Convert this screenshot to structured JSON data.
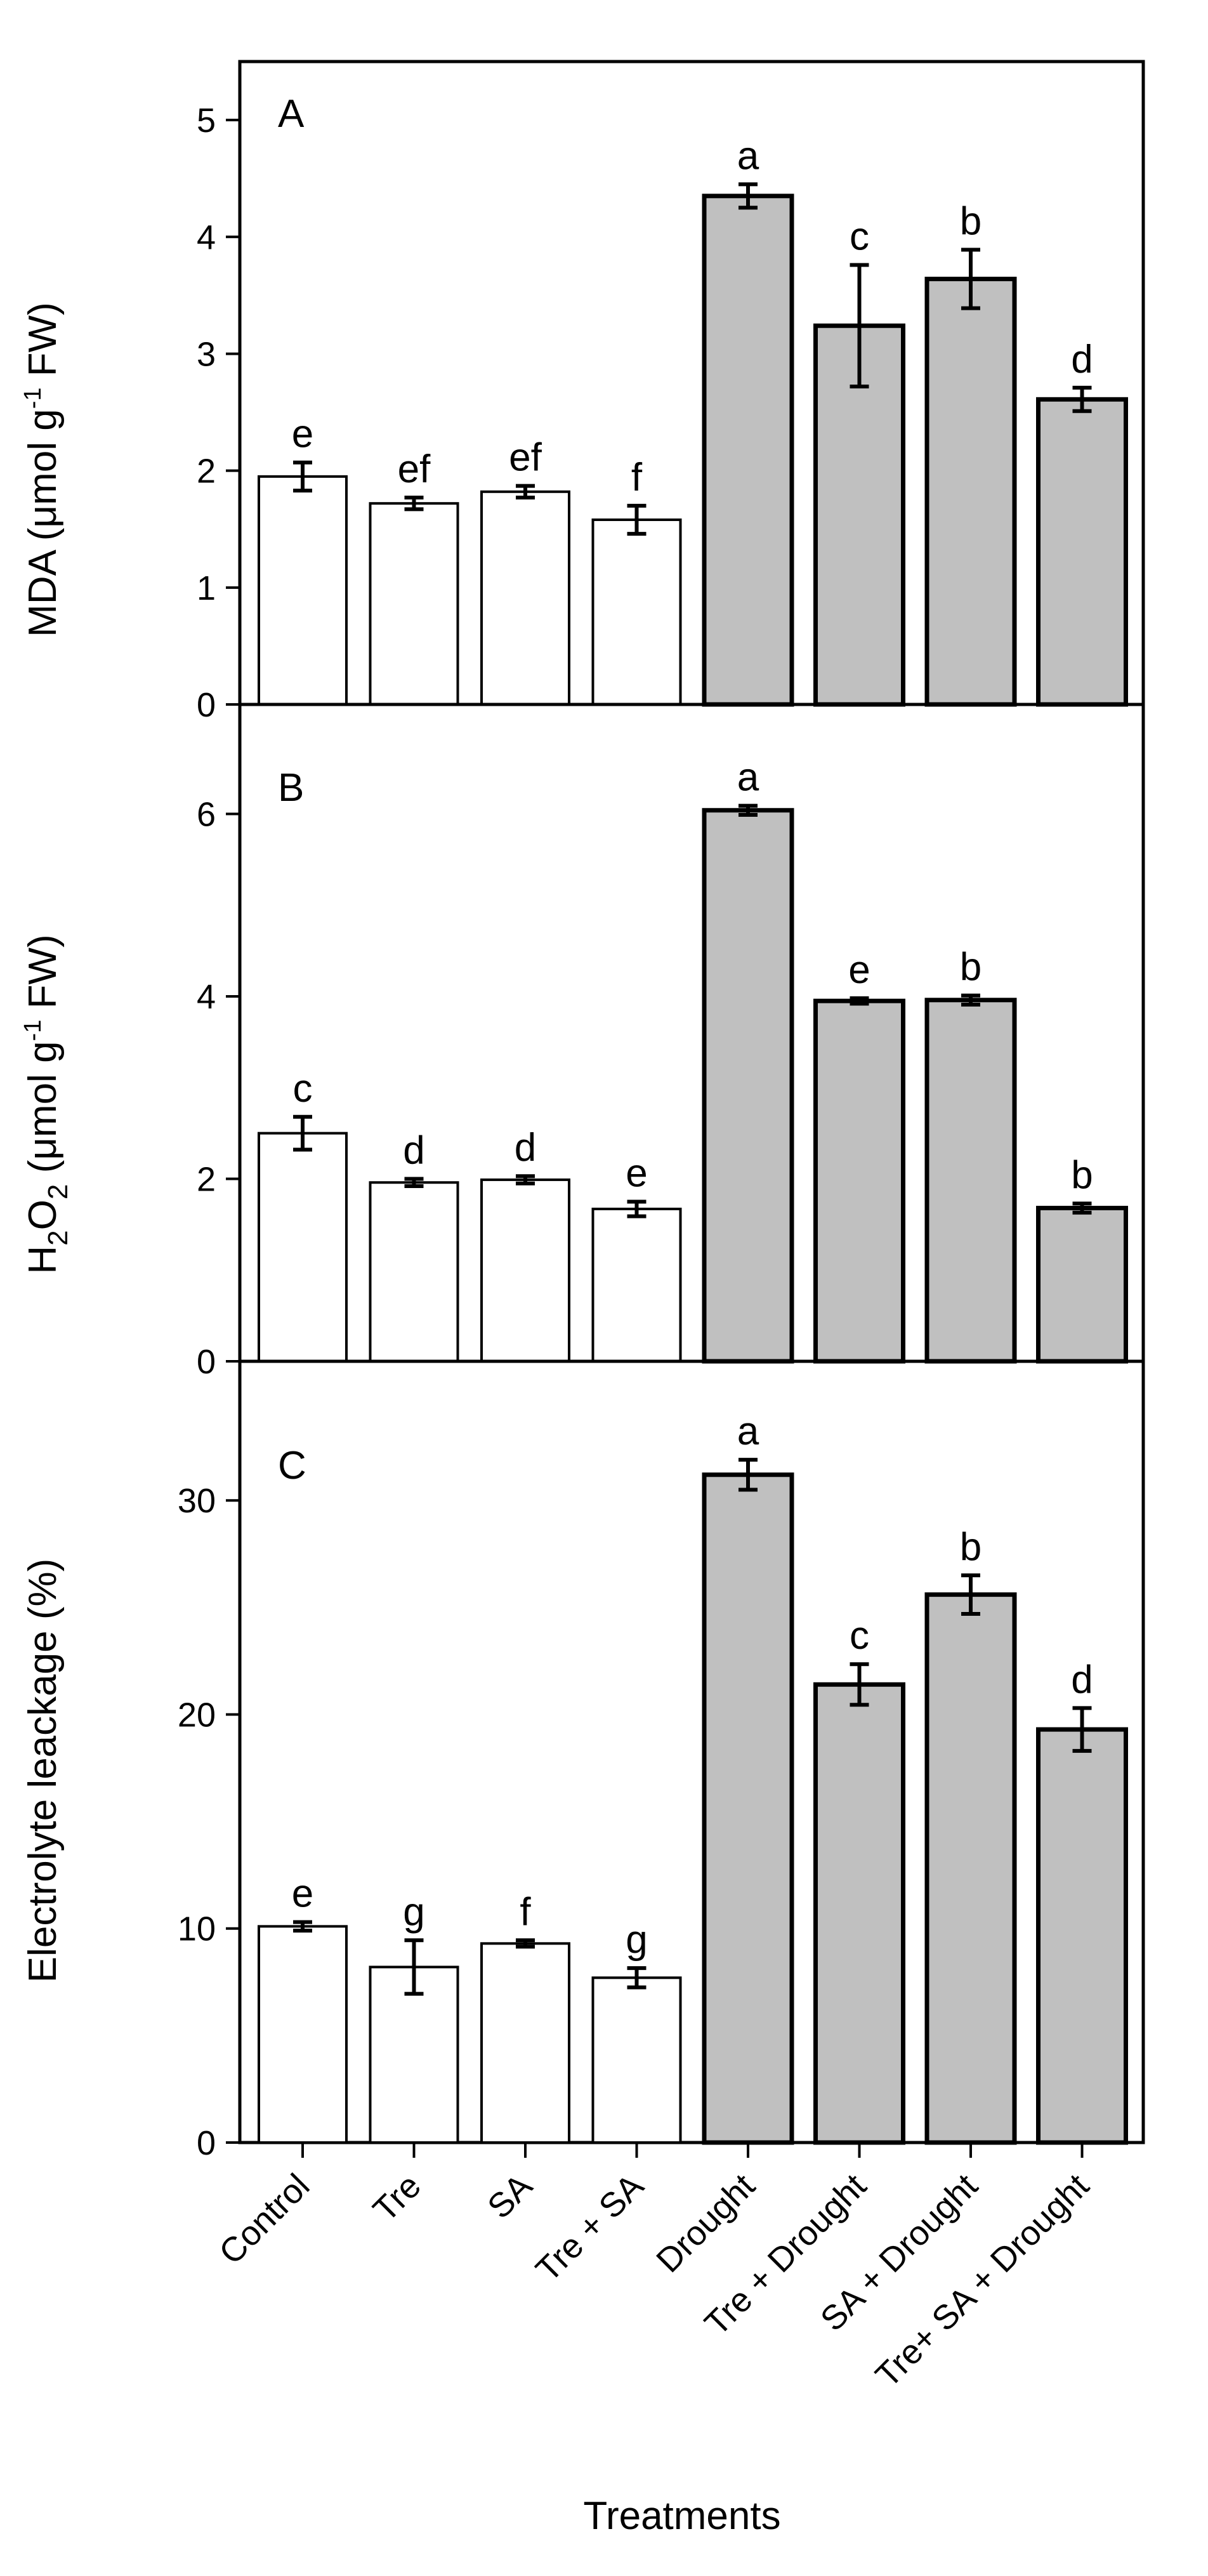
{
  "x_axis_title": "Treatments",
  "categories": [
    "Control",
    "Tre",
    "SA",
    "Tre + SA",
    "Drought",
    "Tre + Drought",
    "SA + Drought",
    "Tre+ SA + Drought"
  ],
  "bar_colors": [
    "#ffffff",
    "#ffffff",
    "#ffffff",
    "#ffffff",
    "#c0c0c0",
    "#c0c0c0",
    "#c0c0c0",
    "#c0c0c0"
  ],
  "chart_data": [
    {
      "type": "bar",
      "panel_letter": "A",
      "ylabel_main": "MDA (",
      "ylabel_mu": "μ",
      "ylabel_unit": "mol g",
      "ylabel_sup": "-1",
      "ylabel_end": " FW)",
      "ylim": [
        0,
        5.5
      ],
      "yticks": [
        0,
        1,
        2,
        3,
        4,
        5
      ],
      "values": [
        1.95,
        1.72,
        1.82,
        1.58,
        4.35,
        3.24,
        3.64,
        2.61
      ],
      "errors": [
        0.12,
        0.05,
        0.05,
        0.12,
        0.1,
        0.52,
        0.25,
        0.1
      ],
      "letters": [
        "e",
        "ef",
        "ef",
        "f",
        "a",
        "c",
        "b",
        "d"
      ]
    },
    {
      "type": "bar",
      "panel_letter": "B",
      "ylabel_h": "H",
      "ylabel_sub1": "2",
      "ylabel_o": "O",
      "ylabel_sub2": "2",
      "ylabel_main": " (",
      "ylabel_mu": "μ",
      "ylabel_unit": "mol g",
      "ylabel_sup": "-1",
      "ylabel_end": " FW)",
      "ylim": [
        0,
        7.2
      ],
      "yticks": [
        0,
        2,
        4,
        6
      ],
      "values": [
        2.5,
        1.96,
        1.99,
        1.67,
        6.04,
        3.95,
        3.96,
        1.68
      ],
      "errors": [
        0.18,
        0.04,
        0.04,
        0.08,
        0.05,
        0.03,
        0.05,
        0.05
      ],
      "letters": [
        "c",
        "d",
        "d",
        "e",
        "a",
        "e",
        "b",
        "b"
      ]
    },
    {
      "type": "bar",
      "panel_letter": "C",
      "ylabel": "Electrolyte leackage (%)",
      "ylim": [
        0,
        36.5
      ],
      "yticks": [
        0,
        10,
        20,
        30
      ],
      "values": [
        10.1,
        8.2,
        9.3,
        7.7,
        31.2,
        21.4,
        25.6,
        19.3
      ],
      "errors": [
        0.2,
        1.25,
        0.15,
        0.45,
        0.7,
        0.95,
        0.9,
        1.0
      ],
      "letters": [
        "e",
        "g",
        "f",
        "g",
        "a",
        "c",
        "b",
        "d"
      ]
    }
  ]
}
